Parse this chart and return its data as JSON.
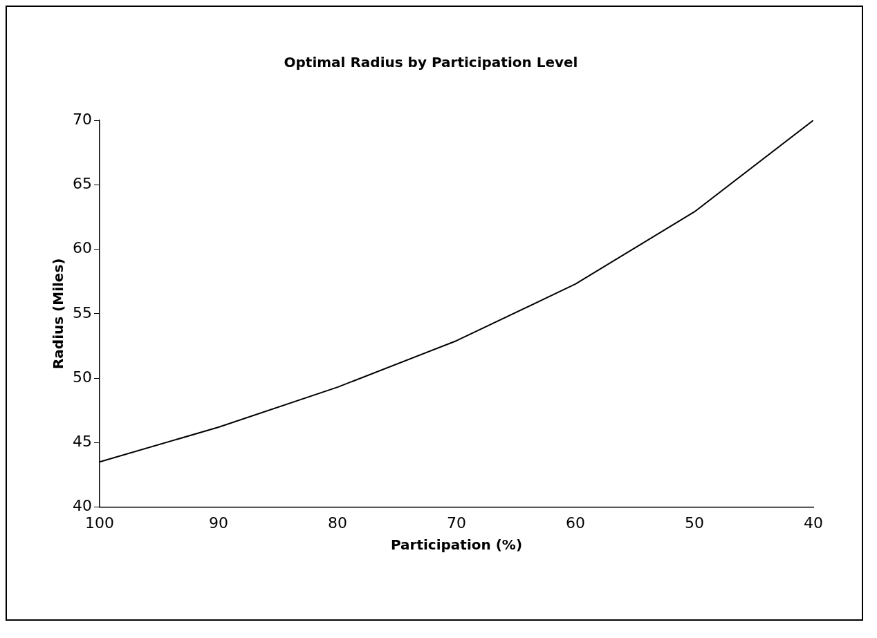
{
  "chart_data": {
    "type": "line",
    "title": "Optimal Radius by Participation Level",
    "xlabel": "Participation (%)",
    "ylabel": "Radius (Miles)",
    "x": [
      100,
      90,
      80,
      70,
      60,
      50,
      40
    ],
    "series": [
      {
        "color": "#000000",
        "values": [
          43.5,
          46.2,
          49.3,
          52.9,
          57.3,
          62.9,
          70
        ]
      }
    ],
    "xlim": [
      100,
      40
    ],
    "xticks": [
      100,
      90,
      80,
      70,
      60,
      50,
      40
    ],
    "ylim": [
      40,
      70
    ],
    "yticks": [
      40,
      45,
      50,
      55,
      60,
      65,
      70
    ],
    "grid": false,
    "legend": false,
    "marker": "none",
    "line_style": "solid"
  }
}
